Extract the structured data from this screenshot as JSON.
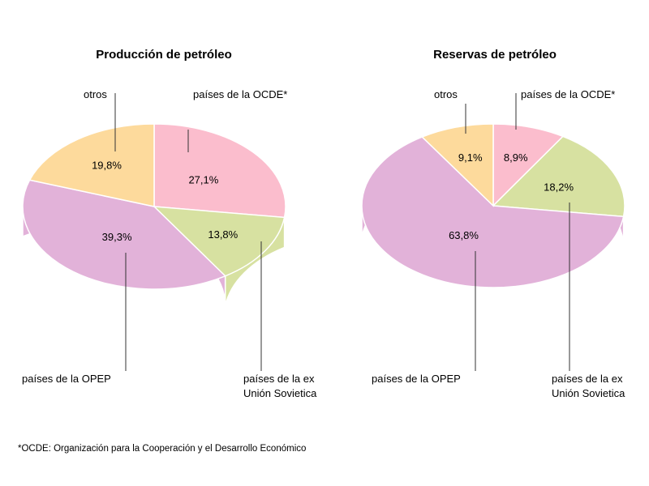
{
  "footnote": "*OCDE: Organización para la Cooperación y el Desarrollo Económico",
  "chart_data": [
    {
      "type": "pie",
      "title": "Producción de petróleo",
      "slices": [
        {
          "label": "países de la OCDE*",
          "value": 27.1,
          "value_label": "27,1%",
          "color": "#fbbdcd"
        },
        {
          "label": "países de la ex Unión Sovietica",
          "value": 13.8,
          "value_label": "13,8%",
          "color": "#d7e1a1"
        },
        {
          "label": "países de la OPEP",
          "value": 39.3,
          "value_label": "39,3%",
          "color": "#e2b2d9"
        },
        {
          "label": "otros",
          "value": 19.8,
          "value_label": "19,8%",
          "color": "#fdda9c"
        }
      ]
    },
    {
      "type": "pie",
      "title": "Reservas de petróleo",
      "slices": [
        {
          "label": "países de la OCDE*",
          "value": 8.9,
          "value_label": "8,9%",
          "color": "#fbbdcd"
        },
        {
          "label": "países de la ex Unión Sovietica",
          "value": 18.2,
          "value_label": "18,2%",
          "color": "#d7e1a1"
        },
        {
          "label": "países de la OPEP",
          "value": 63.8,
          "value_label": "63,8%",
          "color": "#e2b2d9"
        },
        {
          "label": "otros",
          "value": 9.1,
          "value_label": "9,1%",
          "color": "#fdda9c"
        }
      ]
    }
  ]
}
